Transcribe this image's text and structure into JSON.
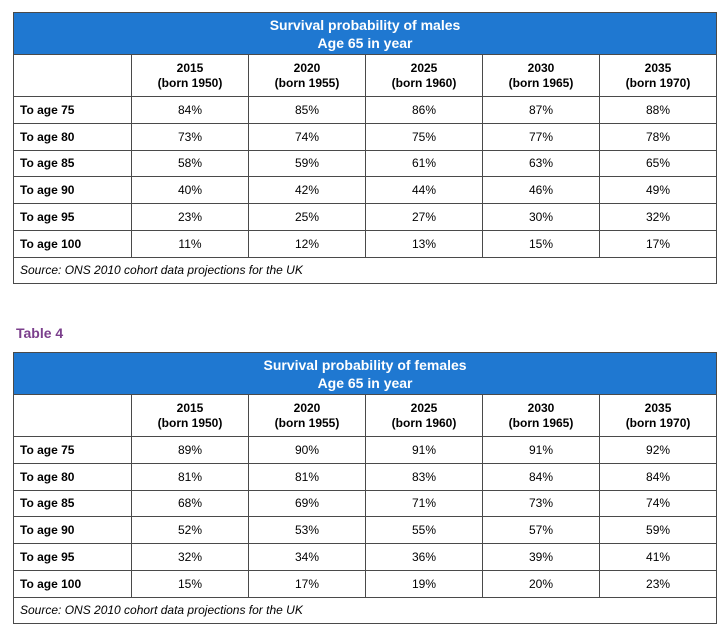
{
  "tables": [
    {
      "title_line1": "Survival probability of males",
      "title_line2": "Age 65 in year",
      "columns": [
        {
          "year": "2015",
          "born": "(born 1950)"
        },
        {
          "year": "2020",
          "born": "(born 1955)"
        },
        {
          "year": "2025",
          "born": "(born 1960)"
        },
        {
          "year": "2030",
          "born": "(born 1965)"
        },
        {
          "year": "2035",
          "born": "(born 1970)"
        }
      ],
      "rows": [
        {
          "label": "To age 75",
          "values": [
            "84%",
            "85%",
            "86%",
            "87%",
            "88%"
          ]
        },
        {
          "label": "To age 80",
          "values": [
            "73%",
            "74%",
            "75%",
            "77%",
            "78%"
          ]
        },
        {
          "label": "To age 85",
          "values": [
            "58%",
            "59%",
            "61%",
            "63%",
            "65%"
          ]
        },
        {
          "label": "To age 90",
          "values": [
            "40%",
            "42%",
            "44%",
            "46%",
            "49%"
          ]
        },
        {
          "label": "To age 95",
          "values": [
            "23%",
            "25%",
            "27%",
            "30%",
            "32%"
          ]
        },
        {
          "label": "To age 100",
          "values": [
            "11%",
            "12%",
            "13%",
            "15%",
            "17%"
          ]
        }
      ],
      "source": "Source: ONS 2010 cohort data projections for the UK"
    },
    {
      "caption": "Table 4",
      "title_line1": "Survival probability of females",
      "title_line2": "Age 65 in year",
      "columns": [
        {
          "year": "2015",
          "born": "(born 1950)"
        },
        {
          "year": "2020",
          "born": "(born 1955)"
        },
        {
          "year": "2025",
          "born": "(born 1960)"
        },
        {
          "year": "2030",
          "born": "(born 1965)"
        },
        {
          "year": "2035",
          "born": "(born 1970)"
        }
      ],
      "rows": [
        {
          "label": "To age 75",
          "values": [
            "89%",
            "90%",
            "91%",
            "91%",
            "92%"
          ]
        },
        {
          "label": "To age 80",
          "values": [
            "81%",
            "81%",
            "83%",
            "84%",
            "84%"
          ]
        },
        {
          "label": "To age 85",
          "values": [
            "68%",
            "69%",
            "71%",
            "73%",
            "74%"
          ]
        },
        {
          "label": "To age 90",
          "values": [
            "52%",
            "53%",
            "55%",
            "57%",
            "59%"
          ]
        },
        {
          "label": "To age 95",
          "values": [
            "32%",
            "34%",
            "36%",
            "39%",
            "41%"
          ]
        },
        {
          "label": "To age 100",
          "values": [
            "15%",
            "17%",
            "19%",
            "20%",
            "23%"
          ]
        }
      ],
      "source": "Source: ONS 2010 cohort data projections for the UK"
    }
  ],
  "colors": {
    "header_blue": "#1f78d1",
    "caption_purple": "#7b3f8c",
    "border": "#4a4a4a"
  }
}
